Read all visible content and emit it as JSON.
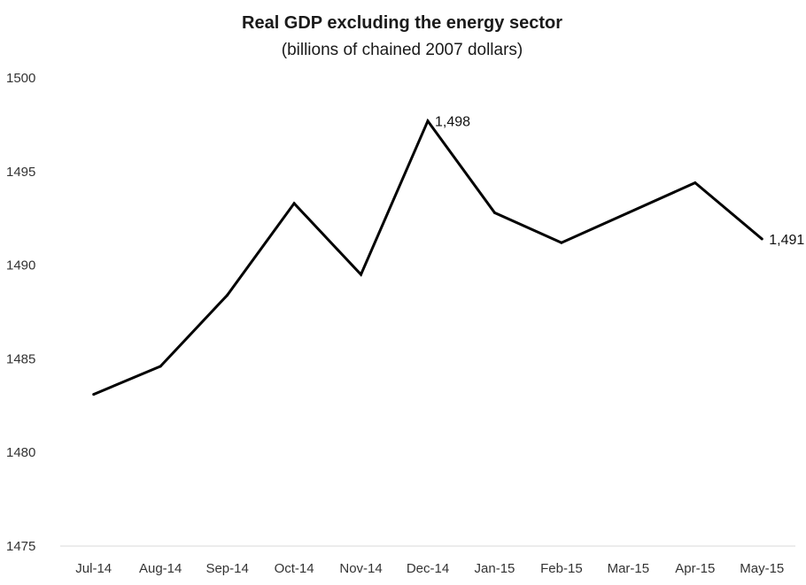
{
  "chart_data": {
    "type": "line",
    "title": "Real GDP excluding the energy sector",
    "subtitle": "(billions of chained 2007 dollars)",
    "categories": [
      "Jul-14",
      "Aug-14",
      "Sep-14",
      "Oct-14",
      "Nov-14",
      "Dec-14",
      "Jan-15",
      "Feb-15",
      "Mar-15",
      "Apr-15",
      "May-15"
    ],
    "series": [
      {
        "values": [
          1483.1,
          1484.6,
          1488.4,
          1493.3,
          1489.5,
          1497.7,
          1492.8,
          1491.2,
          1492.8,
          1494.4,
          1491.4
        ]
      }
    ],
    "ylim": [
      1475,
      1500
    ],
    "yticks": [
      "1475",
      "1480",
      "1485",
      "1490",
      "1495",
      "1500"
    ],
    "data_labels": [
      {
        "index": 5,
        "text": "1,498"
      },
      {
        "index": 10,
        "text": "1,491"
      }
    ],
    "grid": false,
    "line_color": "#000000"
  }
}
